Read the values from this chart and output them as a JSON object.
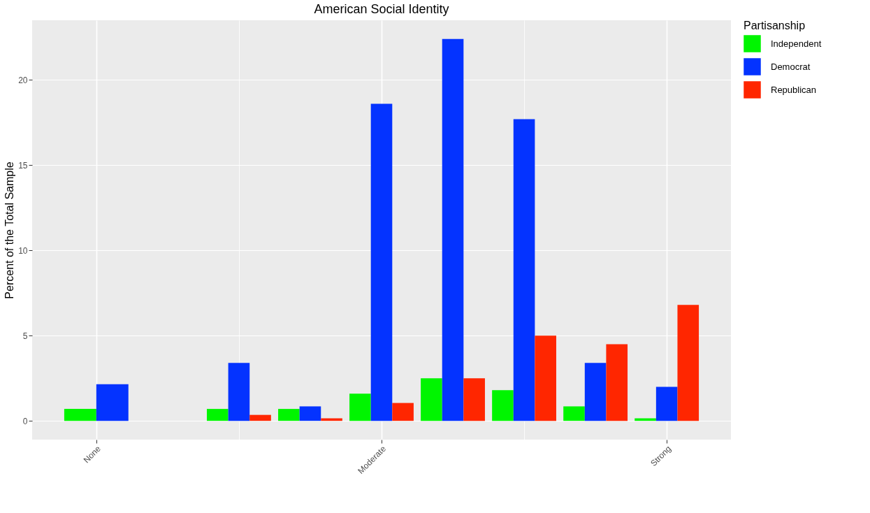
{
  "chart_data": {
    "type": "bar",
    "title": "American Social Identity",
    "ylabel": "Percent of the Total Sample",
    "legend_title": "Partisanship",
    "categories": [
      "None",
      null,
      null,
      null,
      "Moderate",
      null,
      null,
      null,
      "Strong"
    ],
    "series": [
      {
        "name": "Independent",
        "color": "#00f500",
        "values": [
          0.7,
          null,
          0.7,
          0.7,
          1.6,
          2.5,
          1.8,
          0.85,
          0.15
        ]
      },
      {
        "name": "Democrat",
        "color": "#0433ff",
        "values": [
          2.15,
          null,
          3.4,
          0.85,
          18.6,
          22.4,
          17.7,
          3.4,
          2.0
        ]
      },
      {
        "name": "Republican",
        "color": "#ff2600",
        "values": [
          null,
          null,
          0.35,
          0.15,
          1.05,
          2.5,
          5.0,
          4.5,
          6.8
        ]
      }
    ],
    "ylim": [
      -1.1,
      23.5
    ],
    "yticks": [
      0,
      5,
      10,
      15,
      20
    ],
    "grid": true,
    "legend": "right"
  }
}
